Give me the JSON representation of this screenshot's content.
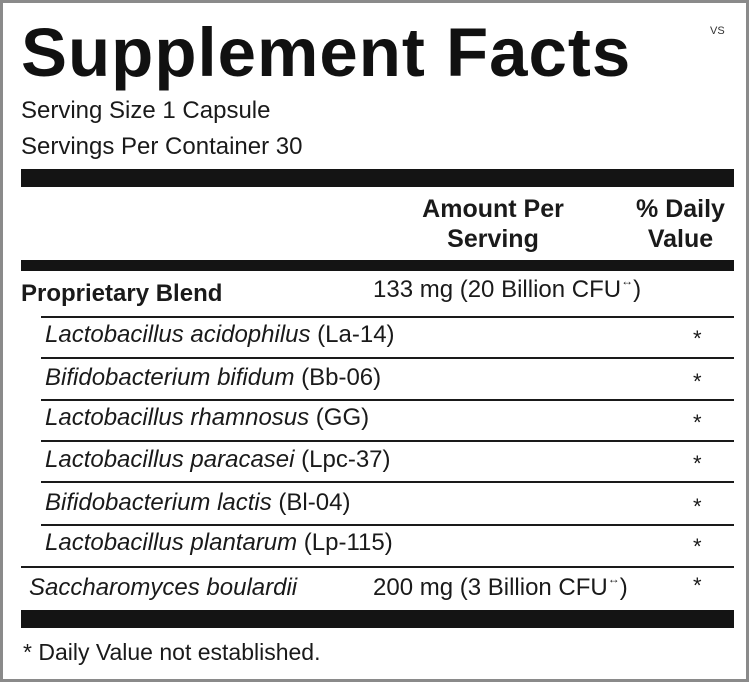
{
  "title": "Supplement Facts",
  "title_mark": "VS",
  "serving_size": "Serving Size 1 Capsule",
  "servings_per_container": "Servings Per Container 30",
  "header": {
    "amount_line1": "Amount Per",
    "amount_line2": "Serving",
    "dv_line1": "% Daily",
    "dv_line2": "Value"
  },
  "blend": {
    "name": "Proprietary Blend",
    "amount": "133 mg (20 Billion CFU",
    "amount_mark": "↔",
    "amount_close": ")"
  },
  "strains": [
    {
      "species": "Lactobacillus acidophilus",
      "code": " (La-14)",
      "dv": "*"
    },
    {
      "species": "Bifidobacterium bifidum",
      "code": " (Bb-06)",
      "dv": "*"
    },
    {
      "species": "Lactobacillus rhamnosus",
      "code": " (GG)",
      "dv": "*"
    },
    {
      "species": "Lactobacillus paracasei",
      "code": " (Lpc-37)",
      "dv": "*"
    },
    {
      "species": "Bifidobacterium lactis",
      "code": " (Bl-04)",
      "dv": "*"
    },
    {
      "species": "Lactobacillus plantarum",
      "code": " (Lp-115)",
      "dv": "*"
    }
  ],
  "sacch": {
    "name": "Saccharomyces boulardii",
    "amount": "200 mg (3 Billion CFU",
    "amount_mark": "↔",
    "amount_close": ")",
    "dv": "*"
  },
  "footnote": "* Daily Value not established."
}
